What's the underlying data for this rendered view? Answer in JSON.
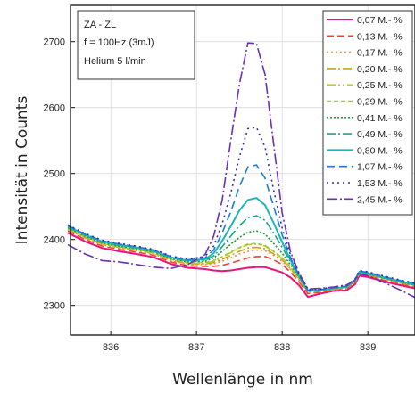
{
  "chart_data": {
    "type": "line",
    "title": "",
    "xlabel": "Wellenlänge in nm",
    "ylabel": "Intensität in Counts",
    "xlim": [
      835.53,
      839.55
    ],
    "ylim": [
      2255,
      2755
    ],
    "xticks": [
      836,
      837,
      838,
      839
    ],
    "yticks": [
      2300,
      2400,
      2500,
      2600,
      2700
    ],
    "grid": true,
    "legend_position": "top-right",
    "annotation": [
      "ZA - ZL",
      "f = 100Hz (3mJ)",
      "Helium 5 l/min"
    ],
    "x": [
      835.5,
      835.7,
      835.9,
      836.1,
      836.3,
      836.5,
      836.7,
      836.9,
      837.1,
      837.2,
      837.3,
      837.4,
      837.5,
      837.6,
      837.7,
      837.8,
      837.9,
      838.0,
      838.1,
      838.2,
      838.3,
      838.45,
      838.6,
      838.75,
      838.85,
      838.9,
      839.0,
      839.2,
      839.4,
      839.55
    ],
    "series": [
      {
        "name": "0,07 M.- %",
        "color": "#e6157a",
        "dash": "solid",
        "values": [
          2410,
          2397,
          2387,
          2382,
          2378,
          2373,
          2363,
          2357,
          2355,
          2353,
          2352,
          2353,
          2355,
          2357,
          2358,
          2358,
          2354,
          2350,
          2342,
          2330,
          2313,
          2318,
          2322,
          2323,
          2332,
          2345,
          2343,
          2336,
          2330,
          2326
        ]
      },
      {
        "name": "0,13 M.- %",
        "color": "#e8443a",
        "dash": "8,4",
        "values": [
          2413,
          2400,
          2390,
          2385,
          2381,
          2376,
          2366,
          2360,
          2359,
          2359,
          2361,
          2364,
          2368,
          2372,
          2374,
          2374,
          2369,
          2362,
          2350,
          2335,
          2318,
          2320,
          2323,
          2325,
          2334,
          2347,
          2345,
          2338,
          2332,
          2328
        ]
      },
      {
        "name": "0,17 M.- %",
        "color": "#e8944a",
        "dash": "2,3",
        "values": [
          2415,
          2402,
          2392,
          2387,
          2383,
          2378,
          2368,
          2362,
          2362,
          2363,
          2367,
          2372,
          2378,
          2382,
          2384,
          2383,
          2376,
          2367,
          2354,
          2338,
          2320,
          2321,
          2324,
          2326,
          2335,
          2348,
          2346,
          2339,
          2333,
          2329
        ]
      },
      {
        "name": "0,20 M.- %",
        "color": "#d4a017",
        "dash": "10,3,2,3",
        "values": [
          2416,
          2403,
          2393,
          2388,
          2384,
          2379,
          2369,
          2363,
          2363,
          2365,
          2370,
          2376,
          2382,
          2387,
          2388,
          2386,
          2378,
          2369,
          2355,
          2339,
          2321,
          2322,
          2325,
          2327,
          2336,
          2349,
          2347,
          2340,
          2334,
          2330
        ]
      },
      {
        "name": "0,25 M.- %",
        "color": "#c8c828",
        "dash": "10,3,2,3,2,3",
        "values": [
          2417,
          2404,
          2394,
          2389,
          2385,
          2380,
          2370,
          2364,
          2364,
          2367,
          2373,
          2380,
          2387,
          2392,
          2393,
          2390,
          2381,
          2371,
          2357,
          2340,
          2322,
          2323,
          2326,
          2328,
          2337,
          2350,
          2348,
          2341,
          2335,
          2331
        ]
      },
      {
        "name": "0,29 M.- %",
        "color": "#9fc93a",
        "dash": "5,3",
        "values": [
          2417,
          2404,
          2394,
          2389,
          2385,
          2380,
          2370,
          2365,
          2365,
          2368,
          2374,
          2381,
          2388,
          2393,
          2394,
          2391,
          2382,
          2372,
          2358,
          2341,
          2322,
          2323,
          2326,
          2328,
          2337,
          2350,
          2348,
          2341,
          2335,
          2331
        ]
      },
      {
        "name": "0,41 M.- %",
        "color": "#1a9f3a",
        "dash": "2,2",
        "values": [
          2418,
          2405,
          2395,
          2390,
          2386,
          2381,
          2371,
          2366,
          2367,
          2372,
          2382,
          2393,
          2403,
          2411,
          2413,
          2408,
          2394,
          2379,
          2361,
          2342,
          2322,
          2323,
          2326,
          2328,
          2337,
          2350,
          2348,
          2341,
          2335,
          2331
        ]
      },
      {
        "name": "0,49 M.- %",
        "color": "#18a88a",
        "dash": "10,3,2,3",
        "values": [
          2419,
          2406,
          2396,
          2391,
          2387,
          2382,
          2372,
          2367,
          2368,
          2375,
          2389,
          2405,
          2421,
          2433,
          2436,
          2429,
          2410,
          2388,
          2365,
          2343,
          2322,
          2323,
          2326,
          2328,
          2337,
          2350,
          2348,
          2341,
          2335,
          2331
        ]
      },
      {
        "name": "0,80 M.- %",
        "color": "#1fb5b0",
        "dash": "solid",
        "values": [
          2420,
          2407,
          2397,
          2392,
          2388,
          2383,
          2373,
          2368,
          2370,
          2379,
          2398,
          2420,
          2444,
          2460,
          2463,
          2452,
          2425,
          2396,
          2368,
          2344,
          2322,
          2323,
          2326,
          2328,
          2338,
          2351,
          2349,
          2342,
          2336,
          2332
        ]
      },
      {
        "name": "1,07 M.- %",
        "color": "#1a7ed8",
        "dash": "9,5",
        "values": [
          2421,
          2408,
          2398,
          2393,
          2389,
          2384,
          2374,
          2369,
          2372,
          2384,
          2410,
          2442,
          2480,
          2510,
          2513,
          2493,
          2450,
          2407,
          2371,
          2345,
          2323,
          2324,
          2327,
          2329,
          2339,
          2352,
          2350,
          2343,
          2337,
          2333
        ]
      },
      {
        "name": "1,53 M.- %",
        "color": "#2c2fb5",
        "dash": "2,4",
        "values": [
          2422,
          2409,
          2399,
          2394,
          2390,
          2385,
          2375,
          2370,
          2374,
          2390,
          2424,
          2470,
          2525,
          2568,
          2570,
          2540,
          2475,
          2417,
          2375,
          2347,
          2324,
          2325,
          2328,
          2330,
          2340,
          2353,
          2351,
          2344,
          2338,
          2334
        ]
      },
      {
        "name": "2,45 M.- %",
        "color": "#6a2fb8",
        "dash": "12,3,2,3",
        "values": [
          2392,
          2378,
          2368,
          2366,
          2362,
          2358,
          2356,
          2362,
          2377,
          2405,
          2460,
          2550,
          2635,
          2698,
          2697,
          2650,
          2545,
          2440,
          2380,
          2348,
          2325,
          2326,
          2328,
          2331,
          2338,
          2348,
          2345,
          2334,
          2322,
          2312
        ]
      }
    ]
  }
}
